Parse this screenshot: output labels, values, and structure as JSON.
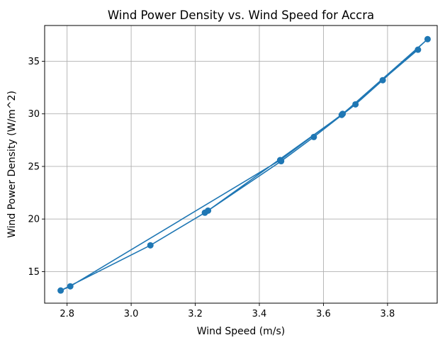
{
  "chart_data": {
    "type": "line",
    "title": "Wind Power Density vs. Wind Speed for Accra",
    "xlabel": "Wind Speed (m/s)",
    "ylabel": "Wind Power Density (W/m^2)",
    "xlim": [
      2.73,
      3.955
    ],
    "ylim": [
      12.0,
      38.4
    ],
    "xticks": [
      2.8,
      3.0,
      3.2,
      3.4,
      3.6,
      3.8
    ],
    "xtick_labels": [
      "2.8",
      "3.0",
      "3.2",
      "3.4",
      "3.6",
      "3.8"
    ],
    "yticks": [
      15,
      20,
      25,
      30,
      35
    ],
    "ytick_labels": [
      "15",
      "20",
      "25",
      "30",
      "35"
    ],
    "grid": true,
    "legend": false,
    "marker": "circle",
    "color": "#1f77b4",
    "series": [
      {
        "x": [
          3.24,
          3.657,
          3.925,
          3.785,
          3.7,
          3.57,
          3.468,
          3.23,
          3.06,
          2.78,
          2.81,
          3.465,
          3.66,
          3.895
        ],
        "y": [
          20.8,
          29.9,
          37.1,
          33.2,
          30.9,
          27.8,
          25.5,
          20.6,
          17.5,
          13.2,
          13.6,
          25.6,
          30.0,
          36.1
        ]
      }
    ]
  }
}
